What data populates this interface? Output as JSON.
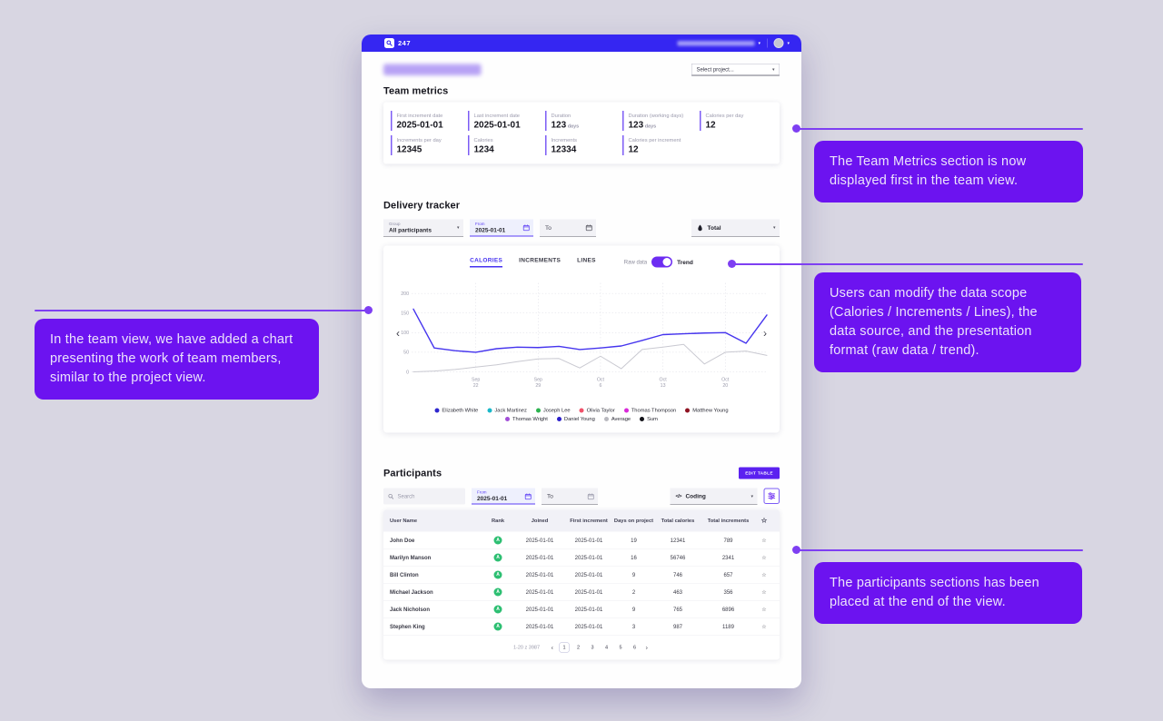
{
  "icons": {
    "caret_down": "▾",
    "chevron_left": "‹",
    "chevron_right": "›",
    "star_outline": "☆",
    "code": "</>"
  },
  "colors": {
    "topbar": "#3526f2",
    "annotation": "#6c13f0",
    "connector": "#7e3ff2",
    "accent": "#5b3df5",
    "badge_green": "#2dbf72"
  },
  "annotations": {
    "right_top": "The Team Metrics section is now displayed first in the team view.",
    "right_middle": "Users can modify the data scope (Calories / Increments / Lines), the data source, and the presentation format (raw data / trend).",
    "right_bottom": "The participants sections has been placed at the end of the view.",
    "left": "In the team view, we have added a chart presenting the work of team members, similar to the project view."
  },
  "app": {
    "topbar": {
      "logo_text": "247"
    },
    "page": {
      "select_project": "Select project..."
    },
    "team_metrics": {
      "title": "Team metrics",
      "metrics": [
        {
          "label": "First increment date",
          "value": "2025-01-01",
          "unit": ""
        },
        {
          "label": "Last increment date",
          "value": "2025-01-01",
          "unit": ""
        },
        {
          "label": "Duration",
          "value": "123",
          "unit": "days"
        },
        {
          "label": "Duration (working days)",
          "value": "123",
          "unit": "days"
        },
        {
          "label": "Calories per day",
          "value": "12",
          "unit": ""
        },
        {
          "label": "Increments per day",
          "value": "12345",
          "unit": ""
        },
        {
          "label": "Calories",
          "value": "1234",
          "unit": ""
        },
        {
          "label": "Increments",
          "value": "12334",
          "unit": ""
        },
        {
          "label": "Calories per increment",
          "value": "12",
          "unit": ""
        }
      ]
    },
    "delivery_tracker": {
      "title": "Delivery tracker",
      "group_label": "Group",
      "group_value": "All participants",
      "from_label": "From",
      "from_value": "2025-01-01",
      "to_placeholder": "To",
      "source_value": "Total",
      "tabs": [
        "CALORIES",
        "INCREMENTS",
        "LINES"
      ],
      "active_tab": "CALORIES",
      "raw_data_label": "Raw data",
      "trend_label": "Trend"
    },
    "participants": {
      "title": "Participants",
      "edit_table_button": "EDIT TABLE",
      "search_placeholder": "Search",
      "from_label": "From",
      "from_value": "2025-01-01",
      "to_placeholder": "To",
      "metric_select": "Coding",
      "table": {
        "headers": [
          "User Name",
          "Rank",
          "Joined",
          "First increment",
          "Days on project",
          "Total calories",
          "Total increments"
        ],
        "rows": [
          {
            "name": "John Doe",
            "rank": "A",
            "joined": "2025-01-01",
            "first_increment": "2025-01-01",
            "days_on_project": "19",
            "total_calories": "12341",
            "total_increments": "789"
          },
          {
            "name": "Marilyn Manson",
            "rank": "A",
            "joined": "2025-01-01",
            "first_increment": "2025-01-01",
            "days_on_project": "16",
            "total_calories": "56746",
            "total_increments": "2341"
          },
          {
            "name": "Bill Clinton",
            "rank": "A",
            "joined": "2025-01-01",
            "first_increment": "2025-01-01",
            "days_on_project": "9",
            "total_calories": "746",
            "total_increments": "657"
          },
          {
            "name": "Michael Jackson",
            "rank": "A",
            "joined": "2025-01-01",
            "first_increment": "2025-01-01",
            "days_on_project": "2",
            "total_calories": "463",
            "total_increments": "356"
          },
          {
            "name": "Jack Nicholson",
            "rank": "A",
            "joined": "2025-01-01",
            "first_increment": "2025-01-01",
            "days_on_project": "9",
            "total_calories": "765",
            "total_increments": "6896"
          },
          {
            "name": "Stephen King",
            "rank": "A",
            "joined": "2025-01-01",
            "first_increment": "2025-01-01",
            "days_on_project": "3",
            "total_calories": "987",
            "total_increments": "1189"
          }
        ]
      },
      "pagination": {
        "range_label": "1-20 z 3987",
        "pages": [
          "1",
          "2",
          "3",
          "4",
          "5",
          "6"
        ],
        "active_page": "1"
      }
    }
  },
  "chart_data": {
    "type": "line",
    "title": "",
    "xlabel": "",
    "ylabel": "",
    "ylim": [
      0,
      220
    ],
    "yticks": [
      0,
      50,
      100,
      150,
      200
    ],
    "grid": true,
    "legend_position": "bottom",
    "x_ticks": [
      {
        "index": 3,
        "month": "Sep",
        "day": "22"
      },
      {
        "index": 6,
        "month": "Sep",
        "day": "29"
      },
      {
        "index": 9,
        "month": "Oct",
        "day": "6"
      },
      {
        "index": 12,
        "month": "Oct",
        "day": "13"
      },
      {
        "index": 15,
        "month": "Oct",
        "day": "20"
      }
    ],
    "series": [
      {
        "name": "Sum",
        "color": "#4534ee",
        "values": [
          160,
          61,
          54,
          50,
          59,
          63,
          62,
          65,
          57,
          61,
          66,
          80,
          95,
          97,
          99,
          100,
          73,
          145
        ]
      },
      {
        "name": "Average",
        "color": "#c9c9d1",
        "values": [
          0,
          2,
          6,
          12,
          18,
          26,
          33,
          34,
          10,
          40,
          8,
          57,
          63,
          70,
          20,
          50,
          53,
          42
        ]
      }
    ],
    "legend": [
      {
        "name": "Elizabeth White",
        "color": "#2f27ce"
      },
      {
        "name": "Jack Martinez",
        "color": "#1ab8c9"
      },
      {
        "name": "Joseph Lee",
        "color": "#2cb34f"
      },
      {
        "name": "Olivia Taylor",
        "color": "#f0526a"
      },
      {
        "name": "Thomas Thompson",
        "color": "#d929d9"
      },
      {
        "name": "Matthew Young",
        "color": "#8f1322"
      },
      {
        "name": "Thomas Wright",
        "color": "#a24fd8"
      },
      {
        "name": "Daniel Young",
        "color": "#2a1ecb"
      },
      {
        "name": "Average",
        "color": "#b9b9bf"
      },
      {
        "name": "Sum",
        "color": "#111118"
      }
    ]
  }
}
